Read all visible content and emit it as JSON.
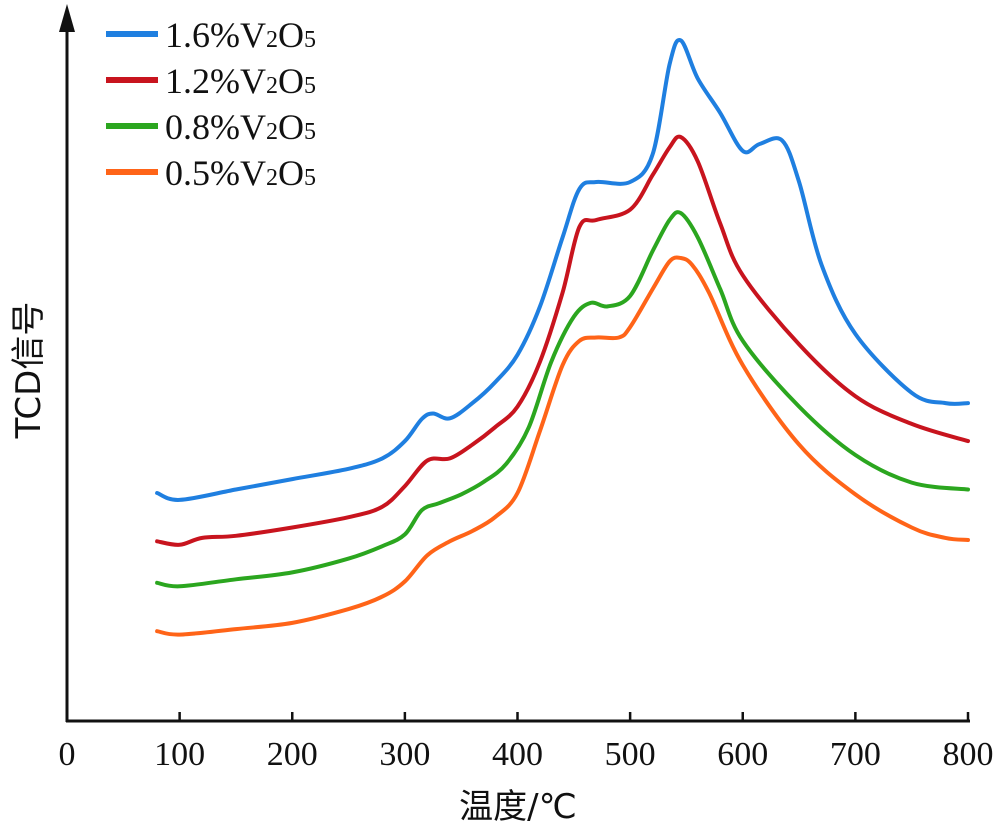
{
  "chart_data": {
    "type": "line",
    "xlabel": "温度/℃",
    "ylabel": "TCD信号",
    "xlim": [
      0,
      800
    ],
    "xticks": [
      "0",
      "100",
      "200",
      "300",
      "400",
      "500",
      "600",
      "700",
      "800"
    ],
    "yticks": [],
    "grid": false,
    "legend_position": "top-left",
    "series": [
      {
        "name": "1.6%V2O5",
        "legend": {
          "pre": "1.6%V",
          "sub1": "2",
          "mid": "O",
          "sub2": "5"
        },
        "color": "#1f7fe0",
        "x": [
          80,
          100,
          150,
          200,
          250,
          280,
          300,
          315,
          325,
          340,
          360,
          380,
          400,
          420,
          440,
          455,
          470,
          500,
          520,
          535,
          545,
          560,
          580,
          600,
          615,
          635,
          650,
          670,
          700,
          750,
          780,
          800
        ],
        "y": [
          33.0,
          32.0,
          33.5,
          35.0,
          36.5,
          38.0,
          40.5,
          43.7,
          44.5,
          43.8,
          46.0,
          49.0,
          53.0,
          60.0,
          70.0,
          77.0,
          78.0,
          78.0,
          82.0,
          95.0,
          98.5,
          93.0,
          88.0,
          82.5,
          83.5,
          84.0,
          78.0,
          66.0,
          56.0,
          47.5,
          46.0,
          46.0
        ]
      },
      {
        "name": "1.2%V2O5",
        "legend": {
          "pre": "1.2%V",
          "sub1": "2",
          "mid": "O",
          "sub2": "5"
        },
        "color": "#c8141e",
        "x": [
          80,
          100,
          120,
          150,
          200,
          250,
          280,
          300,
          320,
          340,
          360,
          380,
          400,
          420,
          440,
          455,
          470,
          500,
          520,
          535,
          545,
          560,
          580,
          600,
          650,
          700,
          750,
          800
        ],
        "y": [
          26.0,
          25.5,
          26.5,
          26.8,
          28.0,
          29.5,
          31.0,
          34.0,
          37.7,
          38.0,
          40.0,
          42.5,
          45.5,
          52.0,
          62.0,
          71.5,
          72.5,
          74.0,
          79.0,
          83.0,
          84.5,
          81.0,
          72.0,
          64.5,
          54.5,
          47.0,
          43.0,
          40.5
        ]
      },
      {
        "name": "0.8%V2O5",
        "legend": {
          "pre": "0.8%V",
          "sub1": "2",
          "mid": "O",
          "sub2": "5"
        },
        "color": "#2ba61f",
        "x": [
          80,
          100,
          150,
          200,
          250,
          280,
          300,
          315,
          330,
          350,
          370,
          390,
          410,
          430,
          450,
          465,
          480,
          500,
          520,
          535,
          545,
          560,
          580,
          600,
          650,
          700,
          750,
          800
        ],
        "y": [
          20.0,
          19.5,
          20.5,
          21.5,
          23.5,
          25.3,
          27.0,
          30.5,
          31.5,
          32.8,
          34.6,
          37.2,
          42.5,
          52.0,
          58.5,
          60.5,
          60.0,
          61.5,
          68.0,
          72.5,
          73.5,
          70.0,
          62.5,
          55.0,
          45.5,
          38.5,
          34.5,
          33.5
        ]
      },
      {
        "name": "0.5%V2O5",
        "legend": {
          "pre": "0.5%V",
          "sub1": "2",
          "mid": "O",
          "sub2": "5"
        },
        "color": "#ff6418",
        "x": [
          80,
          100,
          150,
          200,
          250,
          280,
          300,
          320,
          340,
          360,
          380,
          400,
          420,
          440,
          455,
          470,
          490,
          500,
          520,
          535,
          545,
          555,
          570,
          600,
          650,
          700,
          750,
          780,
          800
        ],
        "y": [
          13.0,
          12.5,
          13.3,
          14.2,
          16.2,
          18.0,
          20.2,
          24.0,
          26.0,
          27.5,
          29.5,
          33.0,
          42.0,
          51.5,
          55.0,
          55.5,
          55.5,
          57.0,
          62.5,
          66.5,
          67.0,
          66.0,
          62.0,
          51.5,
          40.0,
          32.8,
          28.0,
          26.5,
          26.2
        ]
      }
    ]
  }
}
